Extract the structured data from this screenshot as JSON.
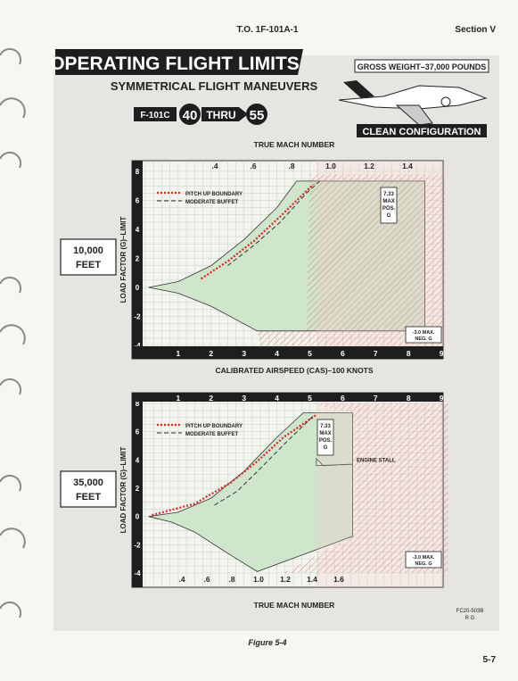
{
  "header": {
    "doc_number": "T.O. 1F-101A-1",
    "section": "Section V"
  },
  "title": "OPERATING FLIGHT LIMITS",
  "subtitle": "SYMMETRICAL FLIGHT MANEUVERS",
  "model": {
    "designation": "F-101C",
    "from": "40",
    "thru": "THRU",
    "to": "55"
  },
  "gross_weight": "GROSS WEIGHT–37,000 POUNDS",
  "configuration": "CLEAN CONFIGURATION",
  "cas_axis_title": "CALIBRATED AIRSPEED (CAS)–100 KNOTS",
  "charts": [
    {
      "altitude": [
        "10,000",
        "FEET"
      ],
      "mach_axis_title": "TRUE MACH NUMBER",
      "mach_ticks": [
        ".4",
        ".6",
        ".8",
        "1.0",
        "1.2",
        "1.4"
      ],
      "cas_ticks": [
        "1",
        "2",
        "3",
        "4",
        "5",
        "6",
        "7",
        "8",
        "9"
      ],
      "y_axis_title": "LOAD FACTOR (G)–LIMIT",
      "y_ticks": [
        "8",
        "6",
        "4",
        "2",
        "0",
        "-2",
        "-4"
      ],
      "legend": [
        "PITCH UP BOUNDARY",
        "MODERATE BUFFET"
      ],
      "max_pos_g": [
        "7.33",
        "MAX",
        "POS.",
        "G"
      ],
      "max_neg_g": [
        "-3.0 MAX.",
        "NEG. G"
      ]
    },
    {
      "altitude": [
        "35,000",
        "FEET"
      ],
      "mach_axis_title": "TRUE MACH NUMBER",
      "mach_ticks": [
        ".4",
        ".6",
        ".8",
        "1.0",
        "1.2",
        "1.4",
        "1.6"
      ],
      "cas_ticks": [
        "1",
        "2",
        "3",
        "4",
        "5",
        "6",
        "7",
        "8",
        "9"
      ],
      "y_axis_title": "LOAD FACTOR (G)–LIMIT",
      "y_ticks": [
        "8",
        "6",
        "4",
        "2",
        "0",
        "-2",
        "-4"
      ],
      "legend": [
        "PITCH UP BOUNDARY",
        "MODERATE BUFFET"
      ],
      "max_pos_g": [
        "7.33",
        "MAX",
        "POS.",
        "G"
      ],
      "max_neg_g": [
        "-3.0 MAX.",
        "NEG. G"
      ],
      "engine_stall": "ENGINE STALL"
    }
  ],
  "footer": {
    "code": "FC20-503B",
    "initials": "R G",
    "figure": "Figure 5-4",
    "page": "5-7"
  }
}
